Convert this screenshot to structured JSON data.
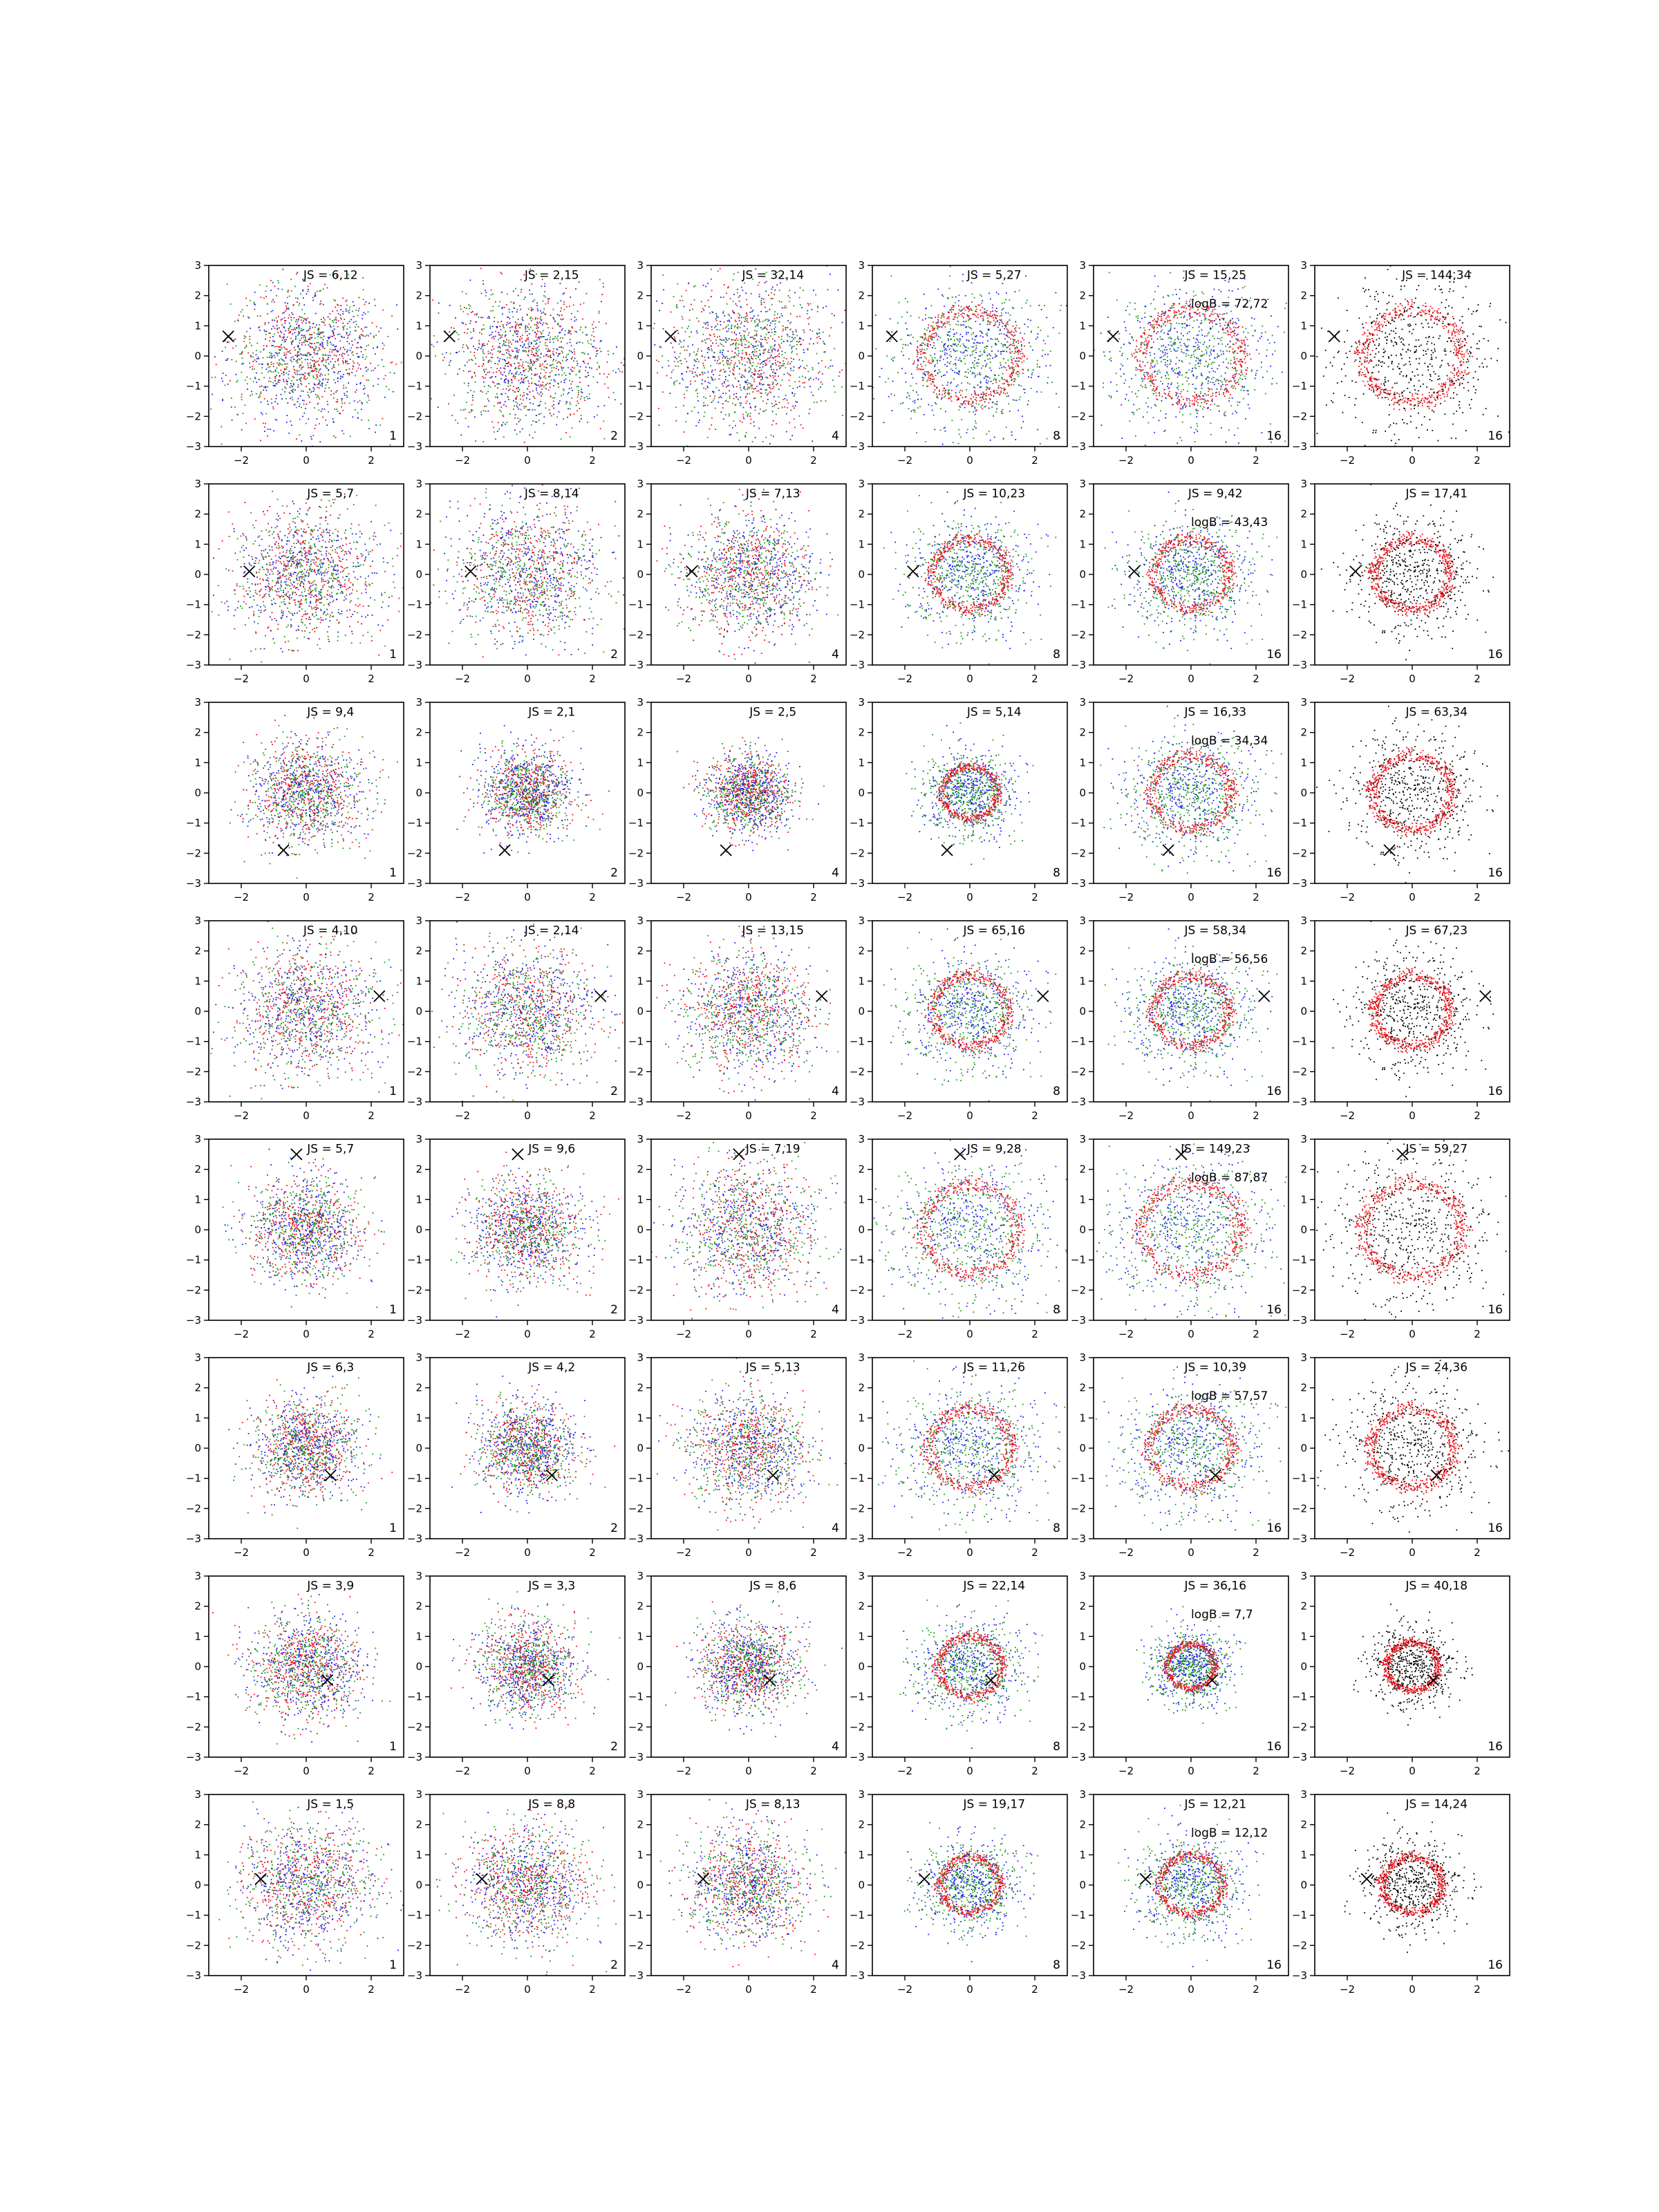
{
  "figure": {
    "grid": {
      "rows": 8,
      "cols": 6
    },
    "colors": {
      "red": "#e8141c",
      "green": "#1a9a1a",
      "blue": "#2121e6",
      "black": "#000000",
      "marker": "#000000"
    }
  },
  "chart_data": {
    "type": "scatter",
    "description_of_marks": "Each panel is a point cloud of red/green/blue dots (or red/black in the last column) with a black X marker at the target point.",
    "xlim": [
      -3,
      3
    ],
    "ylim": [
      -3,
      3
    ],
    "xticks": [
      -2,
      0,
      2
    ],
    "yticks": [
      -3,
      -2,
      -1,
      0,
      1,
      2,
      3
    ],
    "grid": false,
    "rows": [
      {
        "marker": [
          -2.4,
          0.65
        ],
        "panels": [
          {
            "js": "JS = 6,12",
            "corner": "1",
            "spread": 1.15
          },
          {
            "js": "JS = 2,15",
            "corner": "2",
            "spread": 1.2
          },
          {
            "js": "JS = 32,14",
            "corner": "4",
            "spread": 1.25
          },
          {
            "js": "JS = 5,27",
            "corner": "8",
            "spread": 1.2
          },
          {
            "js": "JS = 15,25",
            "logb": "logB = 72,72",
            "corner": "16",
            "spread": 1.25
          },
          {
            "js": "JS = 144,34",
            "corner": "16",
            "spread": 1.25
          }
        ]
      },
      {
        "marker": [
          -1.75,
          0.1
        ],
        "panels": [
          {
            "js": "JS = 5,7",
            "corner": "1",
            "spread": 1.05
          },
          {
            "js": "JS = 8,14",
            "corner": "2",
            "spread": 1.15
          },
          {
            "js": "JS = 7,13",
            "corner": "4",
            "spread": 1.0
          },
          {
            "js": "JS = 10,23",
            "corner": "8",
            "spread": 0.95
          },
          {
            "js": "JS = 9,42",
            "logb": "logB = 43,43",
            "corner": "16",
            "spread": 0.95
          },
          {
            "js": "JS = 17,41",
            "corner": "16",
            "spread": 0.95
          }
        ]
      },
      {
        "marker": [
          -0.7,
          -1.9
        ],
        "panels": [
          {
            "js": "JS = 9,4",
            "corner": "1",
            "spread": 0.85
          },
          {
            "js": "JS = 2,1",
            "corner": "2",
            "spread": 0.7
          },
          {
            "js": "JS = 2,5",
            "corner": "4",
            "spread": 0.65
          },
          {
            "js": "JS = 5,14",
            "corner": "8",
            "spread": 0.7
          },
          {
            "js": "JS = 16,33",
            "logb": "logB = 34,34",
            "corner": "16",
            "spread": 1.0
          },
          {
            "js": "JS = 63,34",
            "corner": "16",
            "spread": 1.0
          }
        ]
      },
      {
        "marker": [
          2.25,
          0.5
        ],
        "panels": [
          {
            "js": "JS = 4,10",
            "corner": "1",
            "spread": 1.05
          },
          {
            "js": "JS = 2,14",
            "corner": "2",
            "spread": 1.05
          },
          {
            "js": "JS = 13,15",
            "corner": "4",
            "spread": 1.0
          },
          {
            "js": "JS = 65,16",
            "corner": "8",
            "spread": 0.95
          },
          {
            "js": "JS = 58,34",
            "logb": "logB = 56,56",
            "corner": "16",
            "spread": 0.95
          },
          {
            "js": "JS = 67,23",
            "corner": "16",
            "spread": 0.95
          }
        ]
      },
      {
        "marker": [
          -0.3,
          2.5
        ],
        "panels": [
          {
            "js": "JS = 5,7",
            "corner": "1",
            "spread": 0.85
          },
          {
            "js": "JS = 9,6",
            "corner": "2",
            "spread": 0.85
          },
          {
            "js": "JS = 7,19",
            "corner": "4",
            "spread": 1.1
          },
          {
            "js": "JS = 9,28",
            "corner": "8",
            "spread": 1.2
          },
          {
            "js": "JS = 149,23",
            "logb": "logB = 87,87",
            "corner": "16",
            "spread": 1.25
          },
          {
            "js": "JS = 59,27",
            "corner": "16",
            "spread": 1.25
          }
        ]
      },
      {
        "marker": [
          0.75,
          -0.9
        ],
        "panels": [
          {
            "js": "JS = 6,3",
            "corner": "1",
            "spread": 0.8
          },
          {
            "js": "JS = 4,2",
            "corner": "2",
            "spread": 0.75
          },
          {
            "js": "JS = 5,13",
            "corner": "4",
            "spread": 0.9
          },
          {
            "js": "JS = 11,26",
            "corner": "8",
            "spread": 1.05
          },
          {
            "js": "JS = 10,39",
            "logb": "logB = 57,57",
            "corner": "16",
            "spread": 1.05
          },
          {
            "js": "JS = 24,36",
            "corner": "16",
            "spread": 1.05
          }
        ]
      },
      {
        "marker": [
          0.65,
          -0.45
        ],
        "panels": [
          {
            "js": "JS = 3,9",
            "corner": "1",
            "spread": 0.85
          },
          {
            "js": "JS = 3,3",
            "corner": "2",
            "spread": 0.75
          },
          {
            "js": "JS = 8,6",
            "corner": "4",
            "spread": 0.75
          },
          {
            "js": "JS = 22,14",
            "corner": "8",
            "spread": 0.8
          },
          {
            "js": "JS = 36,16",
            "logb": "logB = 7,7",
            "corner": "16",
            "spread": 0.6
          },
          {
            "js": "JS = 40,18",
            "corner": "16",
            "spread": 0.65
          }
        ]
      },
      {
        "marker": [
          -1.4,
          0.2
        ],
        "panels": [
          {
            "js": "JS = 1,5",
            "corner": "1",
            "spread": 1.0
          },
          {
            "js": "JS = 8,8",
            "corner": "2",
            "spread": 0.95
          },
          {
            "js": "JS = 8,13",
            "corner": "4",
            "spread": 0.9
          },
          {
            "js": "JS = 19,17",
            "corner": "8",
            "spread": 0.75
          },
          {
            "js": "JS = 12,21",
            "logb": "logB = 12,12",
            "corner": "16",
            "spread": 0.8
          },
          {
            "js": "JS = 14,24",
            "corner": "16",
            "spread": 0.75
          }
        ]
      }
    ]
  }
}
